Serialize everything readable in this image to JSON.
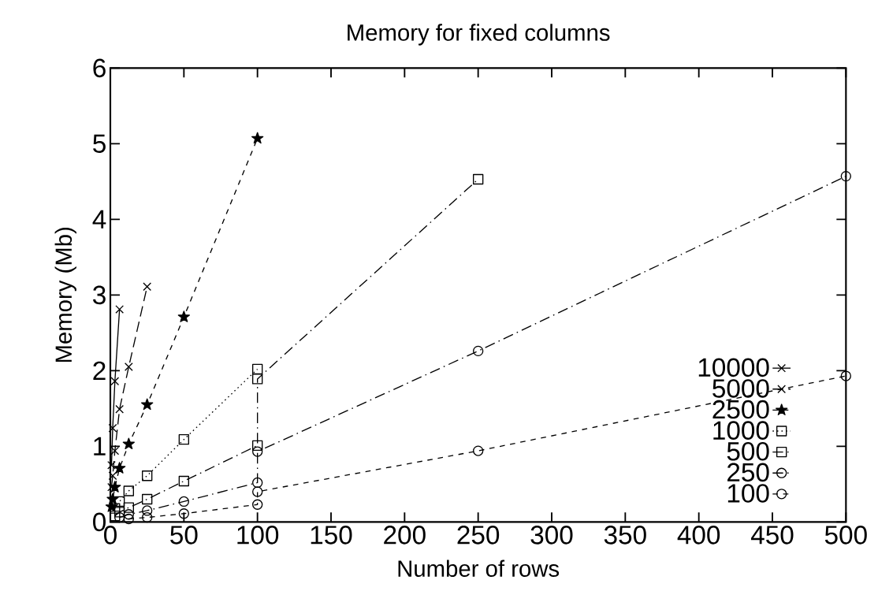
{
  "chart_data": {
    "type": "line",
    "title": "Memory for fixed columns",
    "xlabel": "Number of rows",
    "ylabel": "Memory (Mb)",
    "xlim": [
      0,
      500
    ],
    "xticks": [
      0,
      50,
      100,
      150,
      200,
      250,
      300,
      350,
      400,
      450,
      500
    ],
    "ylim": [
      0,
      6
    ],
    "yticks": [
      0,
      1,
      2,
      3,
      4,
      5,
      6
    ],
    "legend": "bottom right",
    "series": [
      {
        "name": "10000",
        "color": "#000000",
        "marker": "cross",
        "line_style": "solid",
        "x": [
          0.8,
          1.6,
          3.1,
          6.25
        ],
        "values": [
          0.75,
          1.24,
          1.86,
          2.81
        ]
      },
      {
        "name": "5000",
        "color": "#000000",
        "marker": "cross",
        "line_style": "long dashed",
        "x": [
          0.8,
          1.6,
          3.1,
          6.25,
          12.5,
          25
        ],
        "values": [
          0.46,
          0.61,
          0.94,
          1.49,
          2.05,
          3.11
        ]
      },
      {
        "name": "2500",
        "color": "#000000",
        "marker": "star",
        "line_style": "dashed",
        "x": [
          0.8,
          1.6,
          3.1,
          6.25,
          12.5,
          25,
          50,
          100
        ],
        "values": [
          0.2,
          0.3,
          0.46,
          0.71,
          1.03,
          1.55,
          2.71,
          5.07
        ]
      },
      {
        "name": "1000",
        "color": "#000000",
        "marker": "square",
        "line_style": "dotted",
        "x": [
          3.1,
          6.25,
          12.5,
          25,
          50,
          100
        ],
        "values": [
          0.18,
          0.27,
          0.41,
          0.61,
          1.09,
          2.02
        ]
      },
      {
        "name": "500",
        "color": "#000000",
        "marker": "square",
        "line_style": "dashdot",
        "x": [
          3.1,
          6.25,
          12.5,
          25,
          50,
          100,
          100,
          250
        ],
        "values": [
          0.08,
          0.13,
          0.19,
          0.3,
          0.54,
          1.01,
          1.89,
          4.53
        ]
      },
      {
        "name": "250",
        "color": "#000000",
        "marker": "circle",
        "line_style": "dashdot",
        "x": [
          6.25,
          12.5,
          25,
          50,
          100,
          100,
          250,
          500
        ],
        "values": [
          0.06,
          0.1,
          0.15,
          0.27,
          0.52,
          0.93,
          2.26,
          4.57
        ]
      },
      {
        "name": "100",
        "color": "#000000",
        "marker": "circle",
        "line_style": "dashed",
        "x": [
          12.5,
          25,
          50,
          100,
          100,
          250,
          500
        ],
        "values": [
          0.04,
          0.06,
          0.11,
          0.23,
          0.4,
          0.94,
          1.93
        ]
      }
    ]
  }
}
